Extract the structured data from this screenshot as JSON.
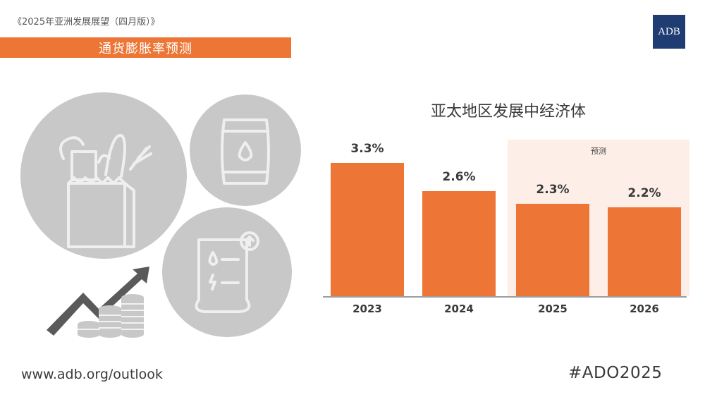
{
  "header": {
    "publication": "《2025年亚洲发展展望（四月版）》",
    "section_title": "通货膨胀率预测",
    "logo_text": "ADB"
  },
  "colors": {
    "accent": "#ED7535",
    "forecast_band": "#FDEFE8",
    "logo_bg": "#1F3C73",
    "icon_circle": "#C8C8C8",
    "icon_line": "#EFEFEF",
    "icon_dark": "#5A5A5A"
  },
  "icons": [
    "grocery-bag-icon",
    "oil-barrel-icon",
    "utility-bill-icon",
    "rising-trend-coins-icon"
  ],
  "chart_data": {
    "type": "bar",
    "title": "亚太地区发展中经济体",
    "categories": [
      "2023",
      "2024",
      "2025",
      "2026"
    ],
    "values": [
      3.3,
      2.6,
      2.3,
      2.2
    ],
    "value_labels": [
      "3.3%",
      "2.6%",
      "2.3%",
      "2.2%"
    ],
    "forecast_label": "预测",
    "forecast_categories": [
      "2025",
      "2026"
    ],
    "ylim": [
      0,
      4.2
    ],
    "grid": false,
    "legend": "none"
  },
  "footer": {
    "url": "www.adb.org/outlook",
    "hashtag": "#ADO2025"
  }
}
